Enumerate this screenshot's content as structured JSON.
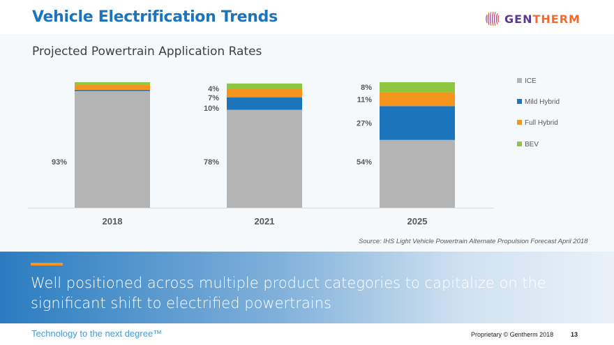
{
  "header": {
    "title": "Vehicle Electrification Trends",
    "logo": {
      "icon": "gentherm-globe-icon",
      "text_part1": "GEN",
      "text_part2": "THERM"
    }
  },
  "subtitle": "Projected Powertrain Application Rates",
  "colors": {
    "ICE": "#b4b4b4",
    "Mild Hybrid": "#1b75bc",
    "Full Hybrid": "#f7941d",
    "BEV": "#8dc63f",
    "title": "#1b75bc",
    "accent": "#f7941d"
  },
  "chart_data": {
    "type": "bar",
    "stacked": true,
    "title": "Projected Powertrain Application Rates",
    "categories": [
      "2018",
      "2021",
      "2025"
    ],
    "series": [
      {
        "name": "ICE",
        "values": [
          93,
          78,
          54
        ],
        "labels": [
          "93%",
          "78%",
          "54%"
        ]
      },
      {
        "name": "Mild Hybrid",
        "values": [
          1,
          10,
          27
        ],
        "labels": [
          "",
          "10%",
          "27%"
        ]
      },
      {
        "name": "Full Hybrid",
        "values": [
          4,
          7,
          11
        ],
        "labels": [
          "",
          "7%",
          "11%"
        ]
      },
      {
        "name": "BEV",
        "values": [
          2,
          4,
          8
        ],
        "labels": [
          "",
          "4%",
          "8%"
        ]
      }
    ],
    "xlabel": "",
    "ylabel": "",
    "ylim": [
      0,
      100
    ],
    "grid": false,
    "legend_position": "right"
  },
  "source": "Source: IHS Light Vehicle Powertrain Alternate  Propulsion Forecast April 2018",
  "banner": {
    "text": "Well positioned across multiple product categories to capitalize on the significant shift to electrified powertrains"
  },
  "footer": {
    "tagline": "Technology to the next degree™",
    "proprietary": "Proprietary © Gentherm 2018",
    "page": "13"
  }
}
